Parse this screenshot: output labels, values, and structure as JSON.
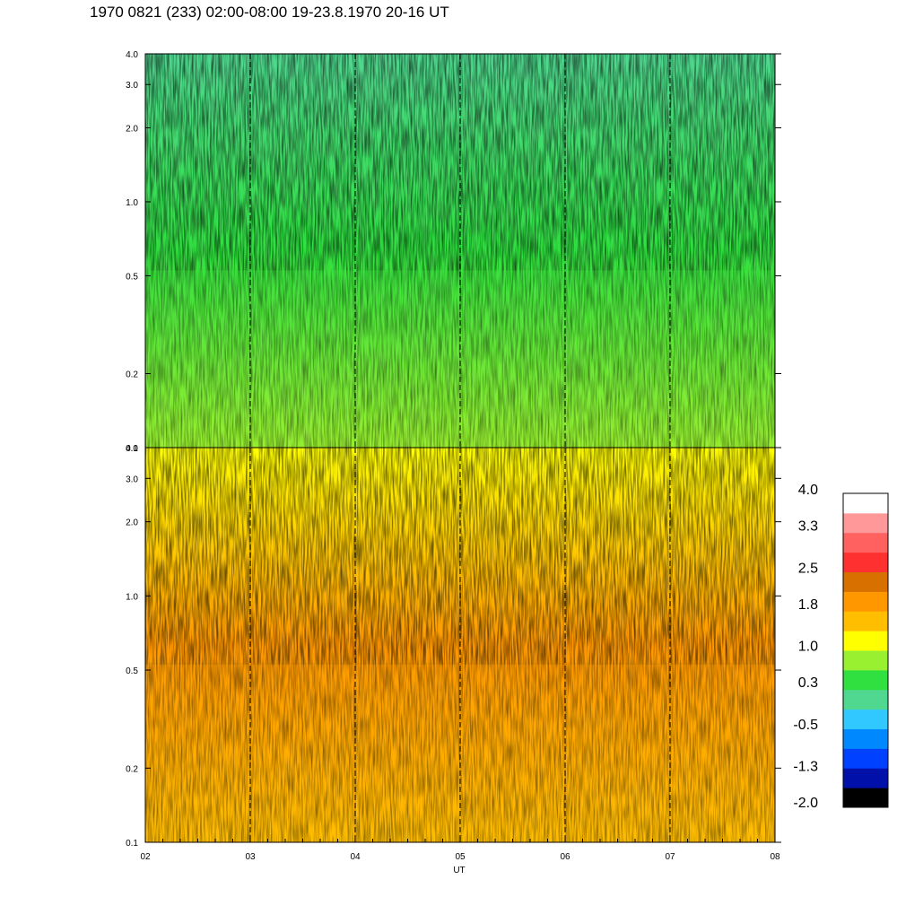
{
  "title": "1970 0821 (233) 02:00-08:00 19-23.8.1970  20-16 UT",
  "chart_data": [
    {
      "type": "heatmap",
      "panel": "upper",
      "y_scale": "log",
      "ylim": [
        0.1,
        4.0
      ],
      "y_ticks": [
        {
          "value": 0.1,
          "label": "0.1"
        },
        {
          "value": 0.2,
          "label": "0.2"
        },
        {
          "value": 0.5,
          "label": "0.5"
        },
        {
          "value": 1.0,
          "label": "1.0"
        },
        {
          "value": 2.0,
          "label": "2.0"
        },
        {
          "value": 3.0,
          "label": "3.0"
        },
        {
          "value": 4.0,
          "label": "4.0"
        }
      ],
      "dominant_levels_low_to_high_freq": [
        0.8,
        0.5,
        0.2
      ]
    },
    {
      "type": "heatmap",
      "panel": "lower",
      "y_scale": "log",
      "ylim": [
        0.1,
        4.0
      ],
      "y_ticks": [
        {
          "value": 0.1,
          "label": "0.1"
        },
        {
          "value": 0.2,
          "label": "0.2"
        },
        {
          "value": 0.5,
          "label": "0.5"
        },
        {
          "value": 1.0,
          "label": "1.0"
        },
        {
          "value": 2.0,
          "label": "2.0"
        },
        {
          "value": 3.0,
          "label": "3.0"
        },
        {
          "value": 4.0,
          "label": "4.0"
        }
      ],
      "dominant_levels_low_to_high_freq": [
        1.6,
        2.0,
        1.0
      ]
    }
  ],
  "x_axis": {
    "label": "UT",
    "range": [
      2,
      8
    ],
    "ticks": [
      {
        "value": 2,
        "label": "02"
      },
      {
        "value": 3,
        "label": "03"
      },
      {
        "value": 4,
        "label": "04"
      },
      {
        "value": 5,
        "label": "05"
      },
      {
        "value": 6,
        "label": "06"
      },
      {
        "value": 7,
        "label": "07"
      },
      {
        "value": 8,
        "label": "08"
      }
    ],
    "dashed_lines_at": [
      3,
      4,
      5,
      6,
      7
    ]
  },
  "colorbar": {
    "range": [
      -2.0,
      4.0
    ],
    "colors": [
      "#000000",
      "#0010a8",
      "#0040ff",
      "#0088ff",
      "#30c8ff",
      "#50d890",
      "#30e040",
      "#98f030",
      "#ffff00",
      "#ffbe00",
      "#ff9800",
      "#d87000",
      "#ff3030",
      "#ff6060",
      "#ff9898",
      "#ffffff"
    ],
    "labels": [
      {
        "value": 4.0,
        "label": "4.0"
      },
      {
        "value": 3.3,
        "label": "3.3"
      },
      {
        "value": 2.5,
        "label": "2.5"
      },
      {
        "value": 1.8,
        "label": "1.8"
      },
      {
        "value": 1.0,
        "label": "1.0"
      },
      {
        "value": 0.3,
        "label": "0.3"
      },
      {
        "value": -0.5,
        "label": "-0.5"
      },
      {
        "value": -1.3,
        "label": "-1.3"
      },
      {
        "value": -2.0,
        "label": "-2.0"
      }
    ]
  }
}
